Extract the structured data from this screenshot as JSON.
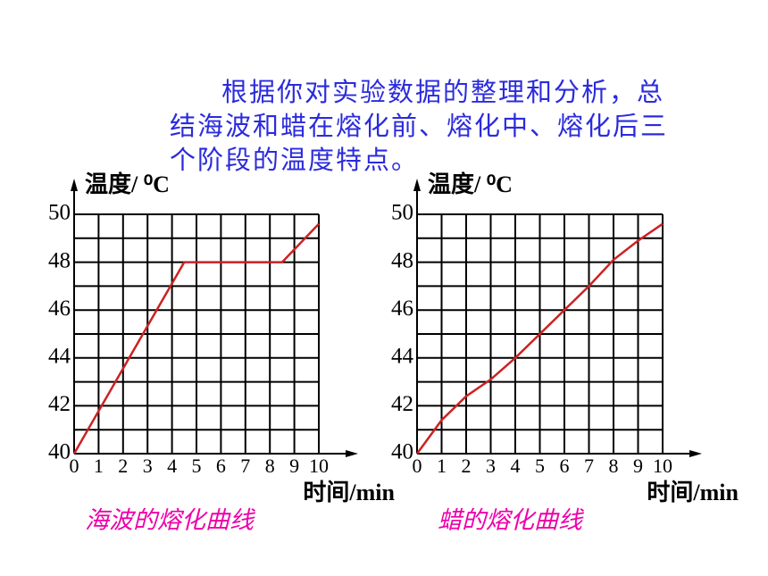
{
  "paragraph_lines": [
    "根据你对实验数据的整理和分析，总",
    "结海波和蜡在熔化前、熔化中、熔化后三",
    "个阶段的温度特点。"
  ],
  "chart_data": [
    {
      "type": "line",
      "title": "海波的熔化曲线",
      "xlabel": "时间/min",
      "ylabel": "温度/ ⁰C",
      "x": [
        0,
        4.5,
        8.5,
        10
      ],
      "values": [
        40,
        48,
        48,
        49.6
      ],
      "color": "#cc2222",
      "xlim": [
        0,
        10
      ],
      "ylim": [
        40,
        50
      ],
      "xticks": [
        0,
        1,
        2,
        3,
        4,
        5,
        6,
        7,
        8,
        9,
        10
      ],
      "yticks": [
        40,
        42,
        44,
        46,
        48,
        50
      ],
      "yminor": [
        41,
        43,
        45,
        47,
        49
      ],
      "grid": true
    },
    {
      "type": "line",
      "title": "蜡的熔化曲线",
      "xlabel": "时间/min",
      "ylabel": "温度/ ⁰C",
      "x": [
        0,
        1,
        2,
        3,
        4,
        5,
        6,
        7,
        8,
        9,
        10
      ],
      "values": [
        40,
        41.4,
        42.4,
        43.1,
        44,
        45,
        46,
        47,
        48.1,
        48.9,
        49.6
      ],
      "color": "#cc2222",
      "xlim": [
        0,
        10
      ],
      "ylim": [
        40,
        50
      ],
      "xticks": [
        0,
        1,
        2,
        3,
        4,
        5,
        6,
        7,
        8,
        9,
        10
      ],
      "yticks": [
        40,
        42,
        44,
        46,
        48,
        50
      ],
      "yminor": [
        41,
        43,
        45,
        47,
        49
      ],
      "grid": true
    }
  ]
}
